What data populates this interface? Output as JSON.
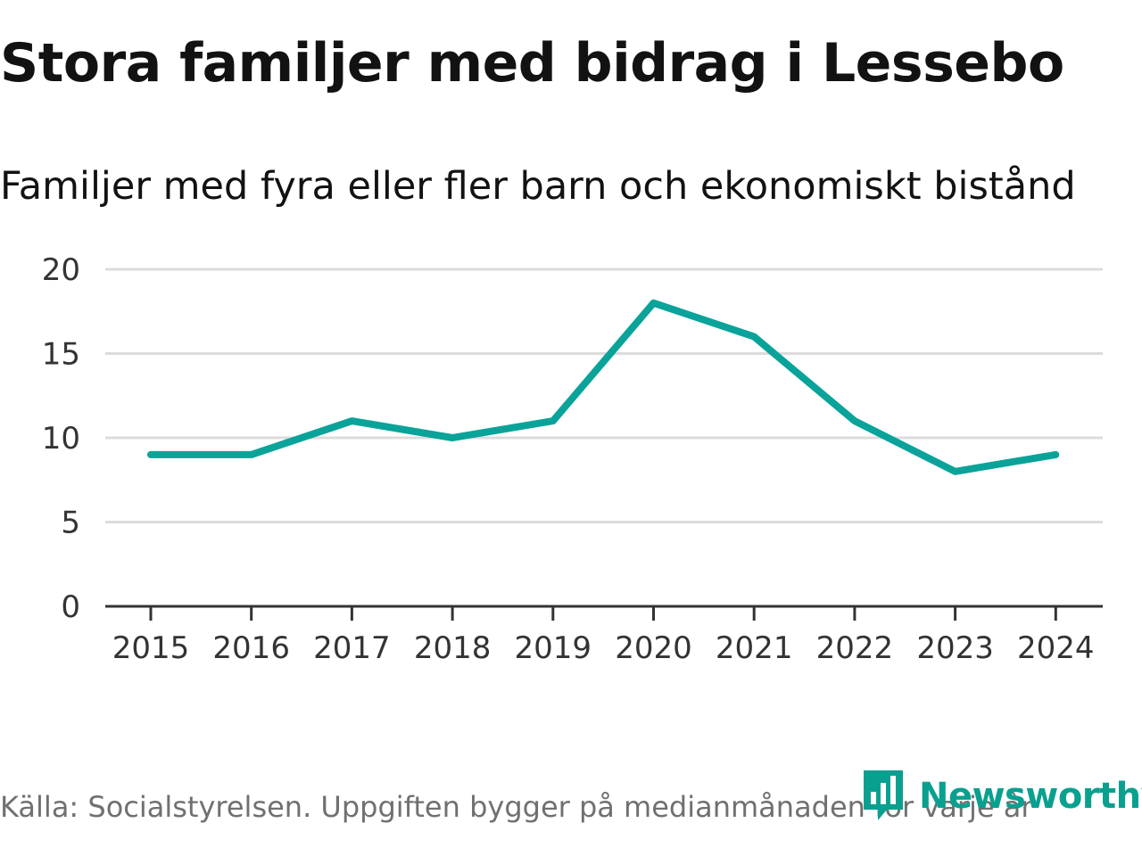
{
  "header": {
    "title": "Stora familjer med bidrag i Lessebo",
    "subtitle": "Familjer med fyra eller fler barn och ekonomiskt bistånd"
  },
  "chart_data": {
    "type": "line",
    "title": "Stora familjer med bidrag i Lessebo",
    "subtitle": "Familjer med fyra eller fler barn och ekonomiskt bistånd",
    "x": [
      "2015",
      "2016",
      "2017",
      "2018",
      "2019",
      "2020",
      "2021",
      "2022",
      "2023",
      "2024"
    ],
    "series": [
      {
        "name": "Familjer med fyra eller fler barn och ekonomiskt bistånd",
        "values": [
          9,
          9,
          11,
          10,
          11,
          18,
          16,
          11,
          8,
          9
        ]
      }
    ],
    "ylim": [
      0,
      20
    ],
    "yticks": [
      0,
      5,
      10,
      15,
      20
    ],
    "xlabel": "",
    "ylabel": "",
    "grid": true,
    "line_color": "#0aa39a"
  },
  "footer": {
    "source": "Källa: Socialstyrelsen. Uppgiften bygger på medianmånaden för varje år",
    "brand": "Newsworthy",
    "brand_icon": "newsworthy-logo-icon",
    "brand_color": "#0aa08f"
  }
}
